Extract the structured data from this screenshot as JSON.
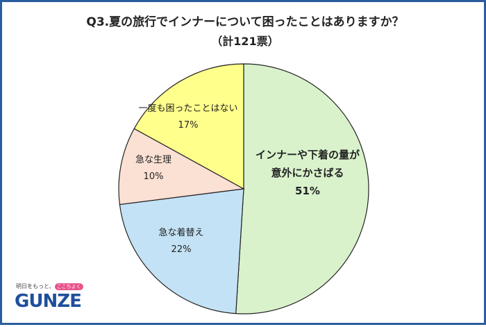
{
  "chart_data": {
    "type": "pie",
    "title": "Q3.夏の旅行でインナーについて困ったことはありますか？",
    "subtitle": "（計121票）",
    "start_angle_deg": 0,
    "direction": "clockwise",
    "slices": [
      {
        "label_lines": [
          "インナーや下着の量が",
          "意外にかさばる"
        ],
        "value": 51,
        "value_label": "51%",
        "color": "#d9f2cc",
        "bold": true
      },
      {
        "label_lines": [
          "急な着替え"
        ],
        "value": 22,
        "value_label": "22%",
        "color": "#c4e2f5",
        "bold": false
      },
      {
        "label_lines": [
          "急な生理"
        ],
        "value": 10,
        "value_label": "10%",
        "color": "#fbe0d4",
        "bold": false
      },
      {
        "label_lines": [
          "一度も困ったことはない"
        ],
        "value": 17,
        "value_label": "17%",
        "color": "#ffff8c",
        "bold": false
      }
    ]
  },
  "logo": {
    "tagline_before": "明日をもっと、",
    "tagline_heart": "ここちよく",
    "tagline_after": "",
    "wordmark": "GUNZE"
  }
}
